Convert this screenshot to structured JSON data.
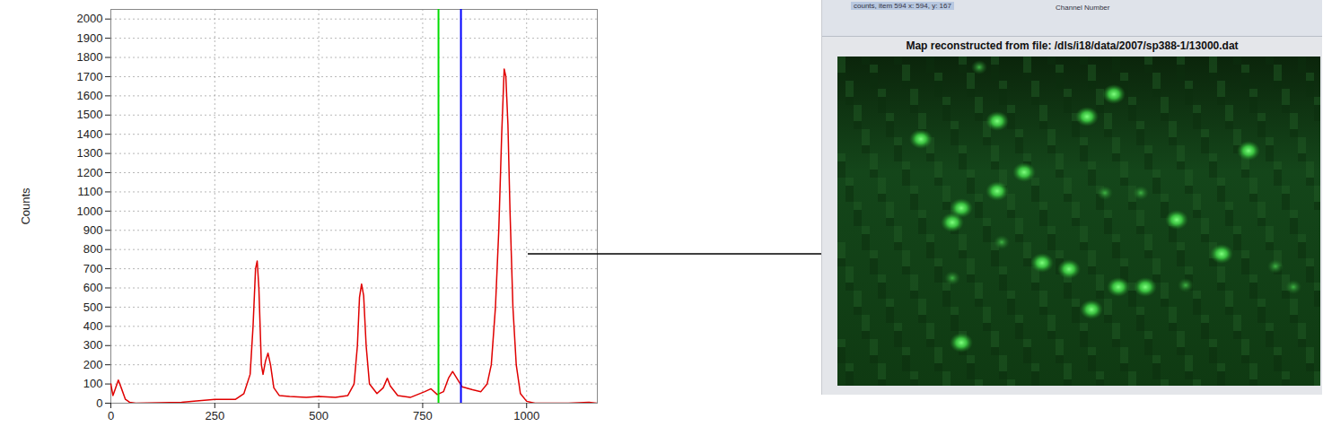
{
  "chart_data": {
    "type": "line",
    "y_label": "Counts",
    "color": "#e00000",
    "x": [
      0,
      5,
      10,
      18,
      25,
      35,
      45,
      60,
      170,
      200,
      250,
      300,
      320,
      335,
      342,
      348,
      352,
      356,
      362,
      366,
      372,
      378,
      384,
      392,
      405,
      430,
      470,
      500,
      540,
      570,
      585,
      593,
      598,
      603,
      608,
      614,
      622,
      640,
      655,
      665,
      672,
      690,
      720,
      755,
      770,
      785,
      800,
      812,
      822,
      832,
      845,
      870,
      890,
      905,
      915,
      925,
      933,
      940,
      946,
      950,
      955,
      960,
      967,
      975,
      985,
      1000,
      1020,
      1100,
      1150,
      1170
    ],
    "values": [
      100,
      40,
      70,
      120,
      80,
      20,
      5,
      0,
      5,
      10,
      20,
      20,
      50,
      150,
      400,
      700,
      740,
      600,
      200,
      150,
      220,
      260,
      200,
      80,
      40,
      35,
      30,
      35,
      30,
      40,
      100,
      300,
      550,
      620,
      560,
      300,
      100,
      50,
      80,
      130,
      90,
      40,
      30,
      60,
      75,
      45,
      60,
      130,
      165,
      130,
      85,
      70,
      60,
      100,
      200,
      500,
      900,
      1400,
      1740,
      1700,
      1450,
      1000,
      500,
      200,
      50,
      10,
      0,
      0,
      5,
      0
    ],
    "xlim": [
      0,
      1170
    ],
    "ylim": [
      0,
      2050
    ],
    "xticks": [
      0,
      250,
      500,
      750,
      1000
    ],
    "yticks": [
      0,
      100,
      200,
      300,
      400,
      500,
      600,
      700,
      800,
      900,
      1000,
      1100,
      1200,
      1300,
      1400,
      1500,
      1600,
      1700,
      1800,
      1900,
      2000
    ],
    "grid": true,
    "markers": [
      {
        "value": 788,
        "color": "#00dd00"
      },
      {
        "value": 842,
        "color": "#0000ff"
      }
    ]
  },
  "screenshot": {
    "status_text": "counts, item 594 x: 594, y: 167",
    "axis_text": "Channel Number",
    "title": "Map reconstructed from file: /dls/i18/data/2007/sp388-1/13000.dat"
  }
}
